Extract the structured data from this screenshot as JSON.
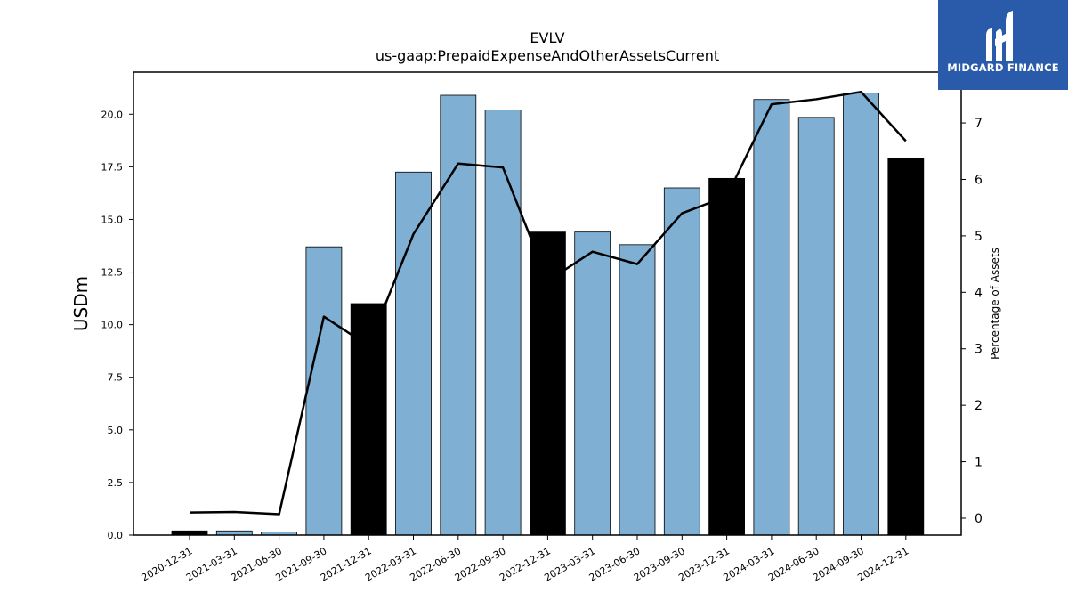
{
  "chart_data": {
    "type": "bar",
    "title": "EVLV",
    "subtitle": "us-gaap:PrepaidExpenseAndOtherAssetsCurrent",
    "ylabel": "USDm",
    "ylabel_right": "Percentage of Assets",
    "ylim": [
      0,
      22
    ],
    "ylim_right": [
      -0.3,
      7.9
    ],
    "yticks": [
      "0.0",
      "2.5",
      "5.0",
      "7.5",
      "10.0",
      "12.5",
      "15.0",
      "17.5",
      "20.0"
    ],
    "yticks_right": [
      "0",
      "1",
      "2",
      "3",
      "4",
      "5",
      "6",
      "7"
    ],
    "categories": [
      "2020-12-31",
      "2021-03-31",
      "2021-06-30",
      "2021-09-30",
      "2021-12-31",
      "2022-03-31",
      "2022-06-30",
      "2022-09-30",
      "2022-12-31",
      "2023-03-31",
      "2023-06-30",
      "2023-09-30",
      "2023-12-31",
      "2024-03-31",
      "2024-06-30",
      "2024-09-30",
      "2024-12-31"
    ],
    "values": [
      0.2,
      0.2,
      0.15,
      13.7,
      11.0,
      17.25,
      20.9,
      20.2,
      14.4,
      14.4,
      13.8,
      16.5,
      16.95,
      20.7,
      19.85,
      21.0,
      17.9
    ],
    "annual_flags": [
      true,
      false,
      false,
      false,
      true,
      false,
      false,
      false,
      true,
      false,
      false,
      false,
      true,
      false,
      false,
      false,
      true
    ],
    "line_series": {
      "name": "Percentage of Assets",
      "values": [
        0.1,
        0.11,
        0.07,
        3.57,
        3.05,
        5.03,
        6.28,
        6.21,
        4.2,
        4.72,
        4.5,
        5.4,
        5.7,
        7.33,
        7.42,
        7.55,
        6.68
      ]
    },
    "colors": {
      "quarterly_bar": "#7fafd3",
      "annual_bar": "#000000",
      "line": "#000000"
    },
    "grid": false,
    "legend": "none"
  },
  "logo": {
    "text": "MIDGARD FINANCE",
    "background": "#2a5bab"
  }
}
